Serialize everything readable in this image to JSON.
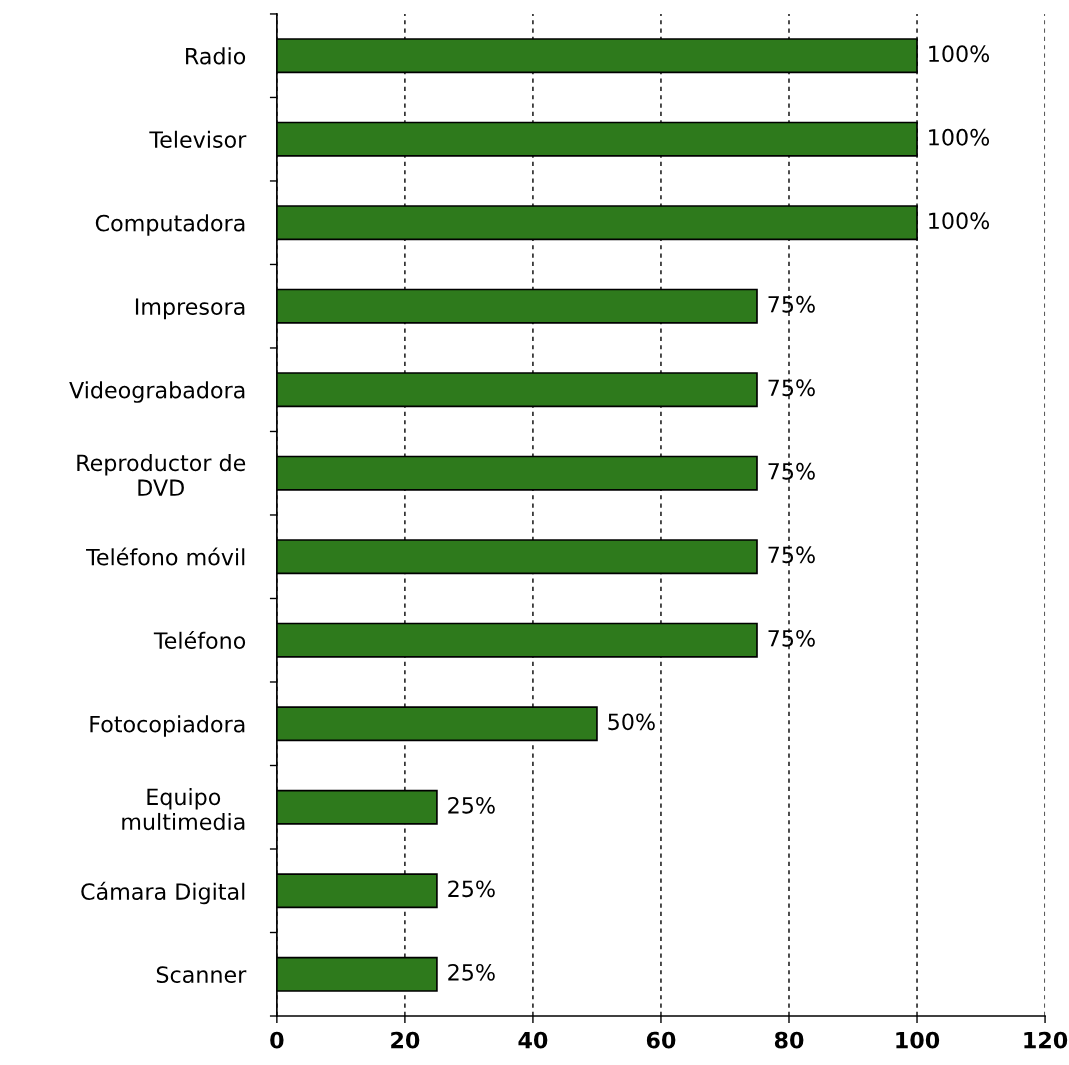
{
  "chart_data": {
    "type": "bar",
    "orientation": "horizontal",
    "categories": [
      "Radio",
      "Televisor",
      "Computadora",
      "Impresora",
      "Videograbadora",
      "Reproductor de\nDVD",
      "Teléfono móvil",
      "Teléfono",
      "Fotocopiadora",
      "Equipo\nmultimedia",
      "Cámara Digital",
      "Scanner"
    ],
    "values": [
      100,
      100,
      100,
      75,
      75,
      75,
      75,
      75,
      50,
      25,
      25,
      25
    ],
    "value_labels": [
      "100%",
      "100%",
      "100%",
      "75%",
      "75%",
      "75%",
      "75%",
      "75%",
      "50%",
      "25%",
      "25%",
      "25%"
    ],
    "color": "#2e7a1c",
    "xlim": [
      0,
      120
    ],
    "xticks": [
      0,
      20,
      40,
      60,
      80,
      100,
      120
    ],
    "grid": "x"
  }
}
